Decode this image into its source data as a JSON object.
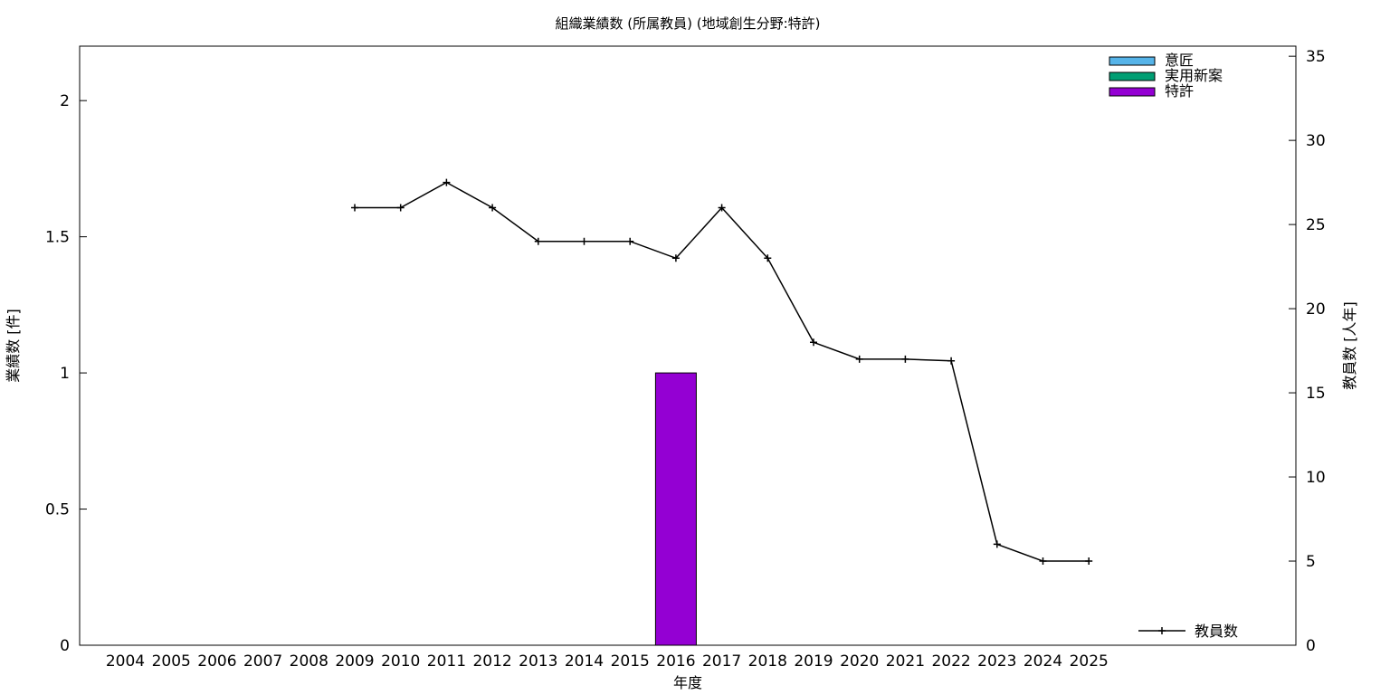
{
  "chart_data": {
    "type": "bar",
    "title": "組織業績数 (所属教員) (地域創生分野:特許)",
    "xlabel": "年度",
    "ylabel": "業績数 [件]",
    "y2label": "教員数 [人年]",
    "categories": [
      "2004",
      "2005",
      "2006",
      "2007",
      "2008",
      "2009",
      "2010",
      "2011",
      "2012",
      "2013",
      "2014",
      "2015",
      "2016",
      "2017",
      "2018",
      "2019",
      "2020",
      "2021",
      "2022",
      "2023",
      "2024",
      "2025"
    ],
    "ylim": [
      0,
      2.2
    ],
    "y_ticks": [
      0,
      0.5,
      1,
      1.5,
      2
    ],
    "y_tick_labels": [
      "0",
      "0.5",
      "1",
      "1.5",
      "2"
    ],
    "y2lim": [
      0,
      35.6
    ],
    "y2_ticks": [
      0,
      5,
      10,
      15,
      20,
      25,
      30,
      35
    ],
    "y2_tick_labels": [
      "0",
      "5",
      "10",
      "15",
      "20",
      "25",
      "30",
      "35"
    ],
    "bar_series": [
      {
        "name": "意匠",
        "color": "#56b4e9",
        "values": [
          0,
          0,
          0,
          0,
          0,
          0,
          0,
          0,
          0,
          0,
          0,
          0,
          0,
          0,
          0,
          0,
          0,
          0,
          0,
          0,
          0,
          0
        ]
      },
      {
        "name": "実用新案",
        "color": "#009e73",
        "values": [
          0,
          0,
          0,
          0,
          0,
          0,
          0,
          0,
          0,
          0,
          0,
          0,
          0,
          0,
          0,
          0,
          0,
          0,
          0,
          0,
          0,
          0
        ]
      },
      {
        "name": "特許",
        "color": "#9400d3",
        "values": [
          0,
          0,
          0,
          0,
          0,
          0,
          0,
          0,
          0,
          0,
          0,
          0,
          1,
          0,
          0,
          0,
          0,
          0,
          0,
          0,
          0,
          0
        ]
      }
    ],
    "line_series": {
      "name": "教員数",
      "color": "#000000",
      "axis": "y2",
      "x": [
        "2009",
        "2010",
        "2011",
        "2012",
        "2013",
        "2014",
        "2015",
        "2016",
        "2017",
        "2018",
        "2019",
        "2020",
        "2021",
        "2022",
        "2023",
        "2024",
        "2025"
      ],
      "values": [
        26,
        26,
        27.5,
        26,
        24,
        24,
        24,
        23,
        26,
        23,
        18,
        17,
        17,
        16.9,
        6,
        5,
        5
      ]
    },
    "legend_bars_position": "top-right",
    "legend_line_position": "bottom-right",
    "grid": false
  }
}
